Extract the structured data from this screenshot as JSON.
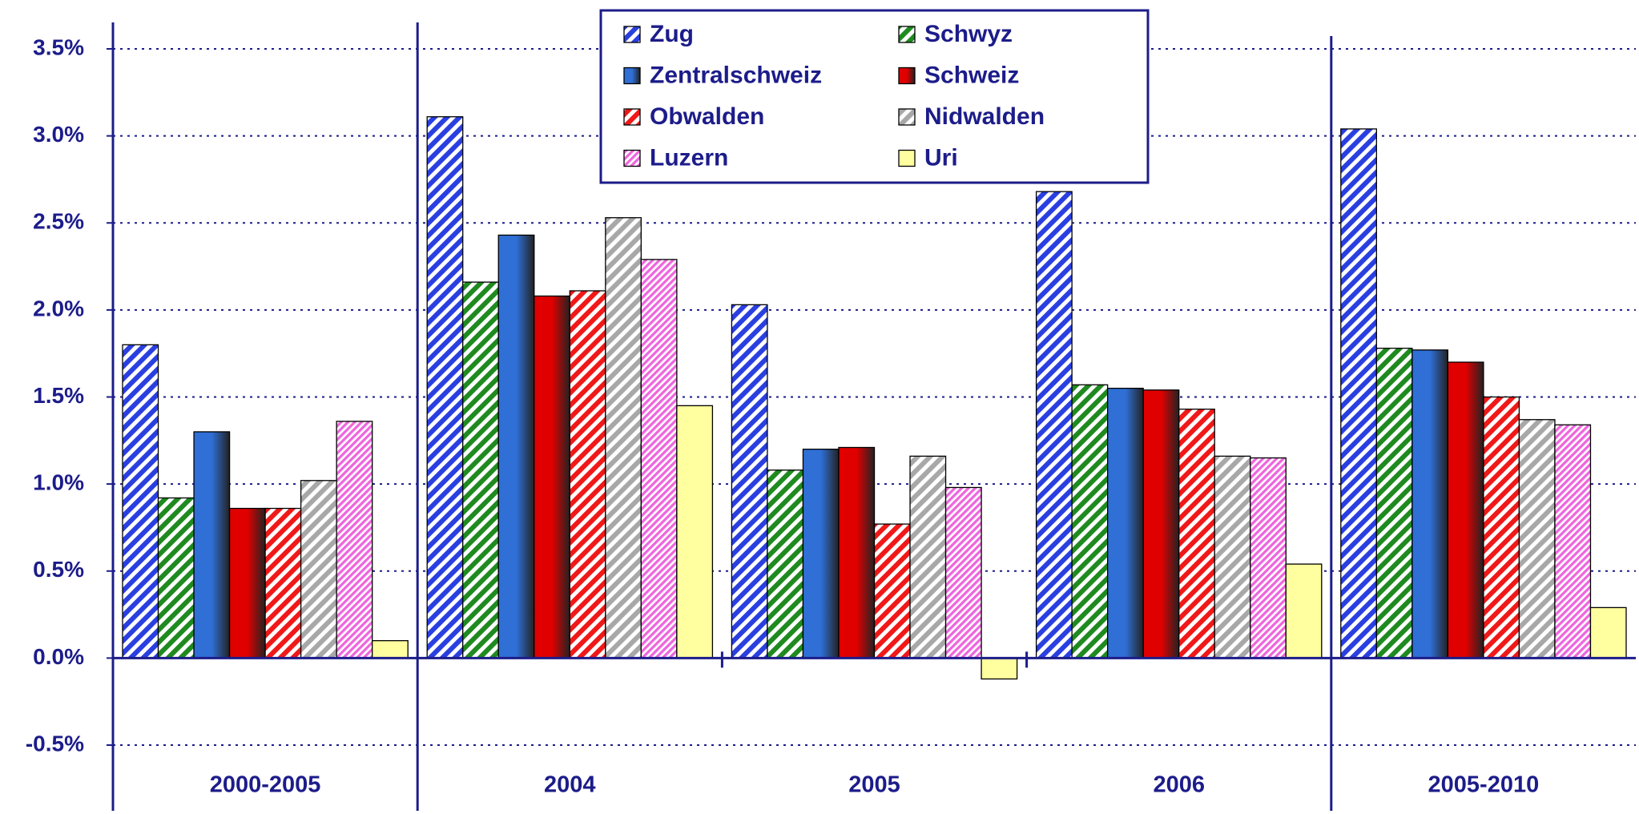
{
  "chart_data": {
    "type": "bar",
    "categories": [
      "2000-2005",
      "2004",
      "2005",
      "2006",
      "2005-2010"
    ],
    "series": [
      {
        "name": "Zug",
        "color": "#2a3fe0",
        "pattern": "hatch",
        "values": [
          1.8,
          3.11,
          2.03,
          2.68,
          3.04
        ]
      },
      {
        "name": "Schwyz",
        "color": "#1f8a1f",
        "pattern": "hatch",
        "values": [
          0.92,
          2.16,
          1.08,
          1.57,
          1.78
        ]
      },
      {
        "name": "Zentralschweiz",
        "color": "#2f6fd6",
        "pattern": "gradient",
        "values": [
          1.3,
          2.43,
          1.2,
          1.55,
          1.77
        ]
      },
      {
        "name": "Schweiz",
        "color": "#e00000",
        "pattern": "gradient",
        "values": [
          0.86,
          2.08,
          1.21,
          1.54,
          1.7
        ]
      },
      {
        "name": "Obwalden",
        "color": "#f01818",
        "pattern": "hatch",
        "values": [
          0.86,
          2.11,
          0.77,
          1.43,
          1.5
        ]
      },
      {
        "name": "Nidwalden",
        "color": "#a8a8a8",
        "pattern": "hatch",
        "values": [
          1.02,
          2.53,
          1.16,
          1.16,
          1.37
        ]
      },
      {
        "name": "Luzern",
        "color": "#ee66dd",
        "pattern": "fine-hatch",
        "values": [
          1.36,
          2.29,
          0.98,
          1.15,
          1.34
        ]
      },
      {
        "name": "Uri",
        "color": "#ffffa0",
        "pattern": "solid",
        "values": [
          0.1,
          1.45,
          -0.12,
          0.54,
          0.29
        ]
      }
    ],
    "ylim": [
      -0.5,
      3.5
    ],
    "yticks": [
      {
        "value": -0.5,
        "label": "-0.5%"
      },
      {
        "value": 0,
        "label": "0.0%"
      },
      {
        "value": 0.5,
        "label": "0.5%"
      },
      {
        "value": 1,
        "label": "1.0%"
      },
      {
        "value": 1.5,
        "label": "1.5%"
      },
      {
        "value": 2,
        "label": "2.0%"
      },
      {
        "value": 2.5,
        "label": "2.5%"
      },
      {
        "value": 3,
        "label": "3.0%"
      },
      {
        "value": 3.5,
        "label": "3.5%"
      }
    ],
    "grid": true,
    "legend": "top"
  }
}
